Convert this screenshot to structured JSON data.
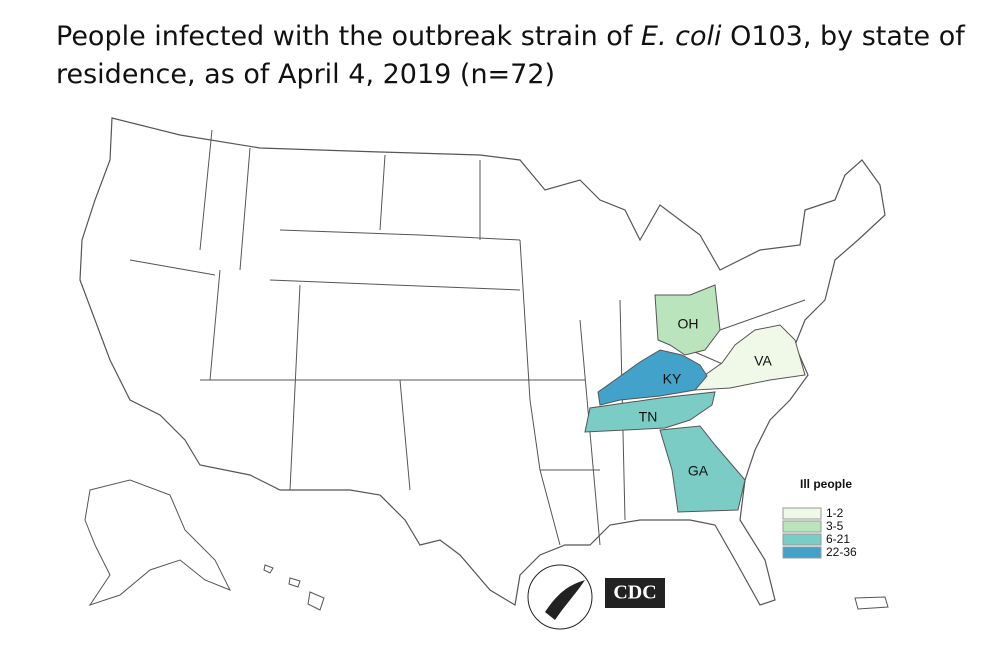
{
  "title": {
    "before": "People infected with the outbreak strain of ",
    "italic": "E. coli",
    "after": " O103, by state of residence, as of April 4, 2019 (n=72)"
  },
  "states": [
    {
      "label": "OH",
      "color": "#bae4bc"
    },
    {
      "label": "VA",
      "color": "#f0f9e8"
    },
    {
      "label": "KY",
      "color": "#43a2ca"
    },
    {
      "label": "TN",
      "color": "#7bccc4"
    },
    {
      "label": "GA",
      "color": "#7bccc4"
    }
  ],
  "legend": {
    "title": "Ill people",
    "items": [
      {
        "label": "1-2",
        "color": "#f0f9e8"
      },
      {
        "label": "3-5",
        "color": "#bae4bc"
      },
      {
        "label": "6-21",
        "color": "#7bccc4"
      },
      {
        "label": "22-36",
        "color": "#43a2ca"
      }
    ]
  },
  "logo": {
    "cdc": "CDC"
  }
}
